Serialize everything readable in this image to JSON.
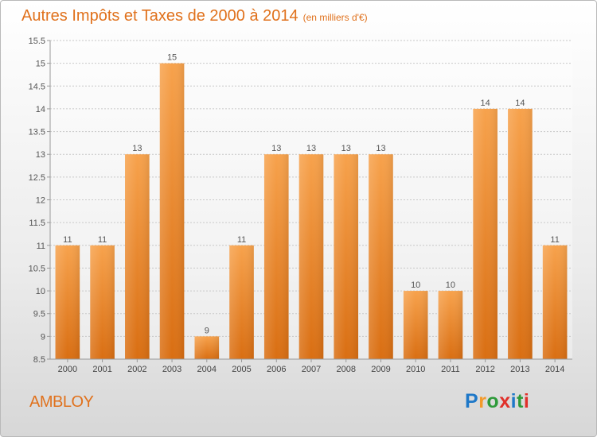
{
  "header": {
    "title": "Autres Impôts et Taxes de 2000 à 2014",
    "unit": "(en milliers d'€)"
  },
  "footer": {
    "commune": "AMBLOY",
    "logo_letters": [
      {
        "ch": "P",
        "color": "#1e78c8"
      },
      {
        "ch": "r",
        "color": "#f39a2b"
      },
      {
        "ch": "o",
        "color": "#2e9a3a"
      },
      {
        "ch": "x",
        "color": "#e0302a"
      },
      {
        "ch": "i",
        "color": "#1e78c8"
      },
      {
        "ch": "t",
        "color": "#2e9a3a"
      },
      {
        "ch": "i",
        "color": "#e0302a"
      }
    ]
  },
  "chart_data": {
    "type": "bar",
    "title": "Autres Impôts et Taxes de 2000 à 2014",
    "subtitle": "(en milliers d'€)",
    "categories": [
      "2000",
      "2001",
      "2002",
      "2003",
      "2004",
      "2005",
      "2006",
      "2007",
      "2008",
      "2009",
      "2010",
      "2011",
      "2012",
      "2013",
      "2014"
    ],
    "values": [
      11,
      11,
      13,
      15,
      9,
      11,
      13,
      13,
      13,
      13,
      10,
      10,
      14,
      14,
      11
    ],
    "value_labels": [
      "11",
      "11",
      "13",
      "15",
      "9",
      "11",
      "13",
      "13",
      "13",
      "13",
      "10",
      "10",
      "14",
      "14",
      "11"
    ],
    "ylim": [
      8.5,
      15.5
    ],
    "yticks": [
      8.5,
      9,
      9.5,
      10,
      10.5,
      11,
      11.5,
      12,
      12.5,
      13,
      13.5,
      14,
      14.5,
      15,
      15.5
    ],
    "ytick_labels": [
      "8.5",
      "9",
      "9.5",
      "10",
      "10.5",
      "11",
      "11.5",
      "12",
      "12.5",
      "13",
      "13.5",
      "14",
      "14.5",
      "15",
      "15.5"
    ],
    "grid": true,
    "bar_color": "#f0912f",
    "label_color": "#555555"
  }
}
